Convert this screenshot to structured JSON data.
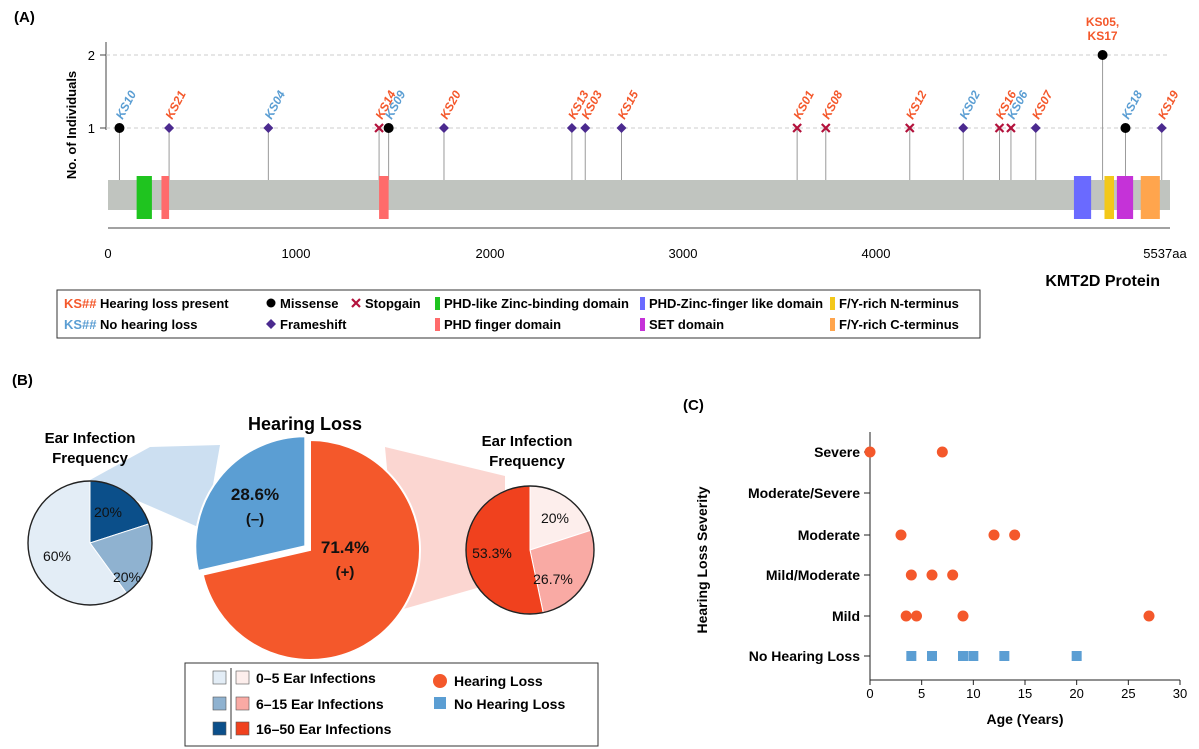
{
  "panel_labels": {
    "a": "(A)",
    "b": "(B)",
    "c": "(C)"
  },
  "colors": {
    "hearing_loss": "#f4582b",
    "no_hearing_loss": "#5b9ed3",
    "protein_bar": "#c0c4bf",
    "phd_like": "#1fc41f",
    "phd_finger": "#ff6b6b",
    "phd_zinc_like": "#6a6aff",
    "set": "#c532d8",
    "fy_n": "#f3c81a",
    "fy_c": "#ffa54d",
    "missense": "#000000",
    "frameshift": "#4b2a8f",
    "stopgain": "#b3123c",
    "blue_dark": "#0b4f8a",
    "blue_mid": "#8fb2d0",
    "blue_light": "#e3edf6",
    "red_dark": "#f0411e",
    "red_mid": "#f9aaa4",
    "red_light": "#fdeeec"
  },
  "chart_data": [
    {
      "type": "lollipop",
      "ylabel": "No. of Individuals",
      "xlabel": "KMT2D Protein",
      "xlim": [
        0,
        5537
      ],
      "ylim": [
        0,
        2
      ],
      "x_ticks": [
        "0",
        "1000",
        "2000",
        "3000",
        "4000",
        "5537aa"
      ],
      "y_ticks": [
        "1",
        "2"
      ],
      "mutations": [
        {
          "label": "KS10",
          "pos": 60,
          "count": 1,
          "type": "missense",
          "hearing_loss": false
        },
        {
          "label": "KS21",
          "pos": 320,
          "count": 1,
          "type": "frameshift",
          "hearing_loss": true
        },
        {
          "label": "KS04",
          "pos": 840,
          "count": 1,
          "type": "frameshift",
          "hearing_loss": false
        },
        {
          "label": "KS14",
          "pos": 1420,
          "count": 1,
          "type": "stopgain",
          "hearing_loss": true
        },
        {
          "label": "KS09",
          "pos": 1470,
          "count": 1,
          "type": "missense",
          "hearing_loss": false
        },
        {
          "label": "KS20",
          "pos": 1760,
          "count": 1,
          "type": "frameshift",
          "hearing_loss": true
        },
        {
          "label": "KS13",
          "pos": 2430,
          "count": 1,
          "type": "frameshift",
          "hearing_loss": true
        },
        {
          "label": "KS03",
          "pos": 2500,
          "count": 1,
          "type": "frameshift",
          "hearing_loss": true
        },
        {
          "label": "KS15",
          "pos": 2690,
          "count": 1,
          "type": "frameshift",
          "hearing_loss": true
        },
        {
          "label": "KS01",
          "pos": 3610,
          "count": 1,
          "type": "stopgain",
          "hearing_loss": true
        },
        {
          "label": "KS08",
          "pos": 3760,
          "count": 1,
          "type": "stopgain",
          "hearing_loss": true
        },
        {
          "label": "KS12",
          "pos": 4200,
          "count": 1,
          "type": "stopgain",
          "hearing_loss": true
        },
        {
          "label": "KS02",
          "pos": 4480,
          "count": 1,
          "type": "frameshift",
          "hearing_loss": false
        },
        {
          "label": "KS16",
          "pos": 4670,
          "count": 1,
          "type": "stopgain",
          "hearing_loss": true
        },
        {
          "label": "KS06",
          "pos": 4730,
          "count": 1,
          "type": "stopgain",
          "hearing_loss": false
        },
        {
          "label": "KS07",
          "pos": 4860,
          "count": 1,
          "type": "frameshift",
          "hearing_loss": true
        },
        {
          "label": "KS05, KS17",
          "pos": 5210,
          "count": 2,
          "type": "missense",
          "hearing_loss": true
        },
        {
          "label": "KS18",
          "pos": 5330,
          "count": 1,
          "type": "missense",
          "hearing_loss": false
        },
        {
          "label": "KS19",
          "pos": 5520,
          "count": 1,
          "type": "frameshift",
          "hearing_loss": true
        }
      ],
      "domains": [
        {
          "name": "PHD-like Zinc-binding domain",
          "start": 150,
          "end": 230,
          "color_key": "phd_like"
        },
        {
          "name": "PHD finger domain",
          "start": 280,
          "end": 320,
          "color_key": "phd_finger"
        },
        {
          "name": "PHD finger domain",
          "start": 1420,
          "end": 1470,
          "color_key": "phd_finger"
        },
        {
          "name": "PHD-Zinc-finger like domain",
          "start": 5060,
          "end": 5150,
          "color_key": "phd_zinc_like"
        },
        {
          "name": "F/Y-rich N-terminus",
          "start": 5220,
          "end": 5270,
          "color_key": "fy_n"
        },
        {
          "name": "SET domain",
          "start": 5285,
          "end": 5370,
          "color_key": "set"
        },
        {
          "name": "F/Y-rich C-terminus",
          "start": 5410,
          "end": 5510,
          "color_key": "fy_c"
        }
      ]
    },
    {
      "type": "pie",
      "title": "Hearing Loss",
      "slices": [
        {
          "label": "71.4%",
          "sub": "(+)",
          "value": 71.4,
          "color_key": "hearing_loss"
        },
        {
          "label": "28.6%",
          "sub": "(–)",
          "value": 28.6,
          "color_key": "no_hearing_loss"
        }
      ]
    },
    {
      "type": "pie",
      "title": "Ear Infection Frequency",
      "group": "no hearing loss",
      "slices": [
        {
          "label": "20%",
          "value": 20,
          "color_key": "blue_dark"
        },
        {
          "label": "20%",
          "value": 20,
          "color_key": "blue_mid"
        },
        {
          "label": "60%",
          "value": 60,
          "color_key": "blue_light"
        }
      ]
    },
    {
      "type": "pie",
      "title": "Ear Infection Frequency",
      "group": "hearing loss",
      "slices": [
        {
          "label": "20%",
          "value": 20,
          "color_key": "red_light"
        },
        {
          "label": "26.7%",
          "value": 26.7,
          "color_key": "red_mid"
        },
        {
          "label": "53.3%",
          "value": 53.3,
          "color_key": "red_dark"
        }
      ]
    },
    {
      "type": "scatter",
      "xlabel": "Age (Years)",
      "ylabel": "Hearing Loss Severity",
      "xlim": [
        0,
        30
      ],
      "x_ticks": [
        "0",
        "5",
        "10",
        "15",
        "20",
        "25",
        "30"
      ],
      "categories": [
        "No Hearing Loss",
        "Mild",
        "Mild/Moderate",
        "Moderate",
        "Moderate/Severe",
        "Severe"
      ],
      "series": [
        {
          "name": "Hearing Loss",
          "marker": "circle",
          "points": [
            {
              "x": 0,
              "y": "Severe"
            },
            {
              "x": 7,
              "y": "Severe"
            },
            {
              "x": 3,
              "y": "Moderate"
            },
            {
              "x": 12,
              "y": "Moderate"
            },
            {
              "x": 14,
              "y": "Moderate"
            },
            {
              "x": 4,
              "y": "Mild/Moderate"
            },
            {
              "x": 6,
              "y": "Mild/Moderate"
            },
            {
              "x": 8,
              "y": "Mild/Moderate"
            },
            {
              "x": 3.5,
              "y": "Mild"
            },
            {
              "x": 4.5,
              "y": "Mild"
            },
            {
              "x": 9,
              "y": "Mild"
            },
            {
              "x": 27,
              "y": "Mild"
            }
          ]
        },
        {
          "name": "No Hearing Loss",
          "marker": "square",
          "points": [
            {
              "x": 4,
              "y": "No Hearing Loss"
            },
            {
              "x": 6,
              "y": "No Hearing Loss"
            },
            {
              "x": 9,
              "y": "No Hearing Loss"
            },
            {
              "x": 10,
              "y": "No Hearing Loss"
            },
            {
              "x": 13,
              "y": "No Hearing Loss"
            },
            {
              "x": 20,
              "y": "No Hearing Loss"
            }
          ]
        }
      ]
    }
  ],
  "legend_a": {
    "ks_code": "KS##",
    "hearing_loss_present": "Hearing loss present",
    "no_hearing_loss": "No hearing loss",
    "missense": "Missense",
    "frameshift": "Frameshift",
    "stopgain": "Stopgain",
    "phd_like": "PHD-like Zinc-binding domain",
    "phd_finger": "PHD finger domain",
    "phd_zinc_like": "PHD-Zinc-finger like domain",
    "set": "SET domain",
    "fy_n": "F/Y-rich N-terminus",
    "fy_c": "F/Y-rich C-terminus"
  },
  "legend_b": {
    "range_low": "0–5 Ear Infections",
    "range_mid": "6–15 Ear Infections",
    "range_high": "16–50 Ear Infections",
    "hearing_loss": "Hearing Loss",
    "no_hearing_loss": "No Hearing Loss"
  }
}
